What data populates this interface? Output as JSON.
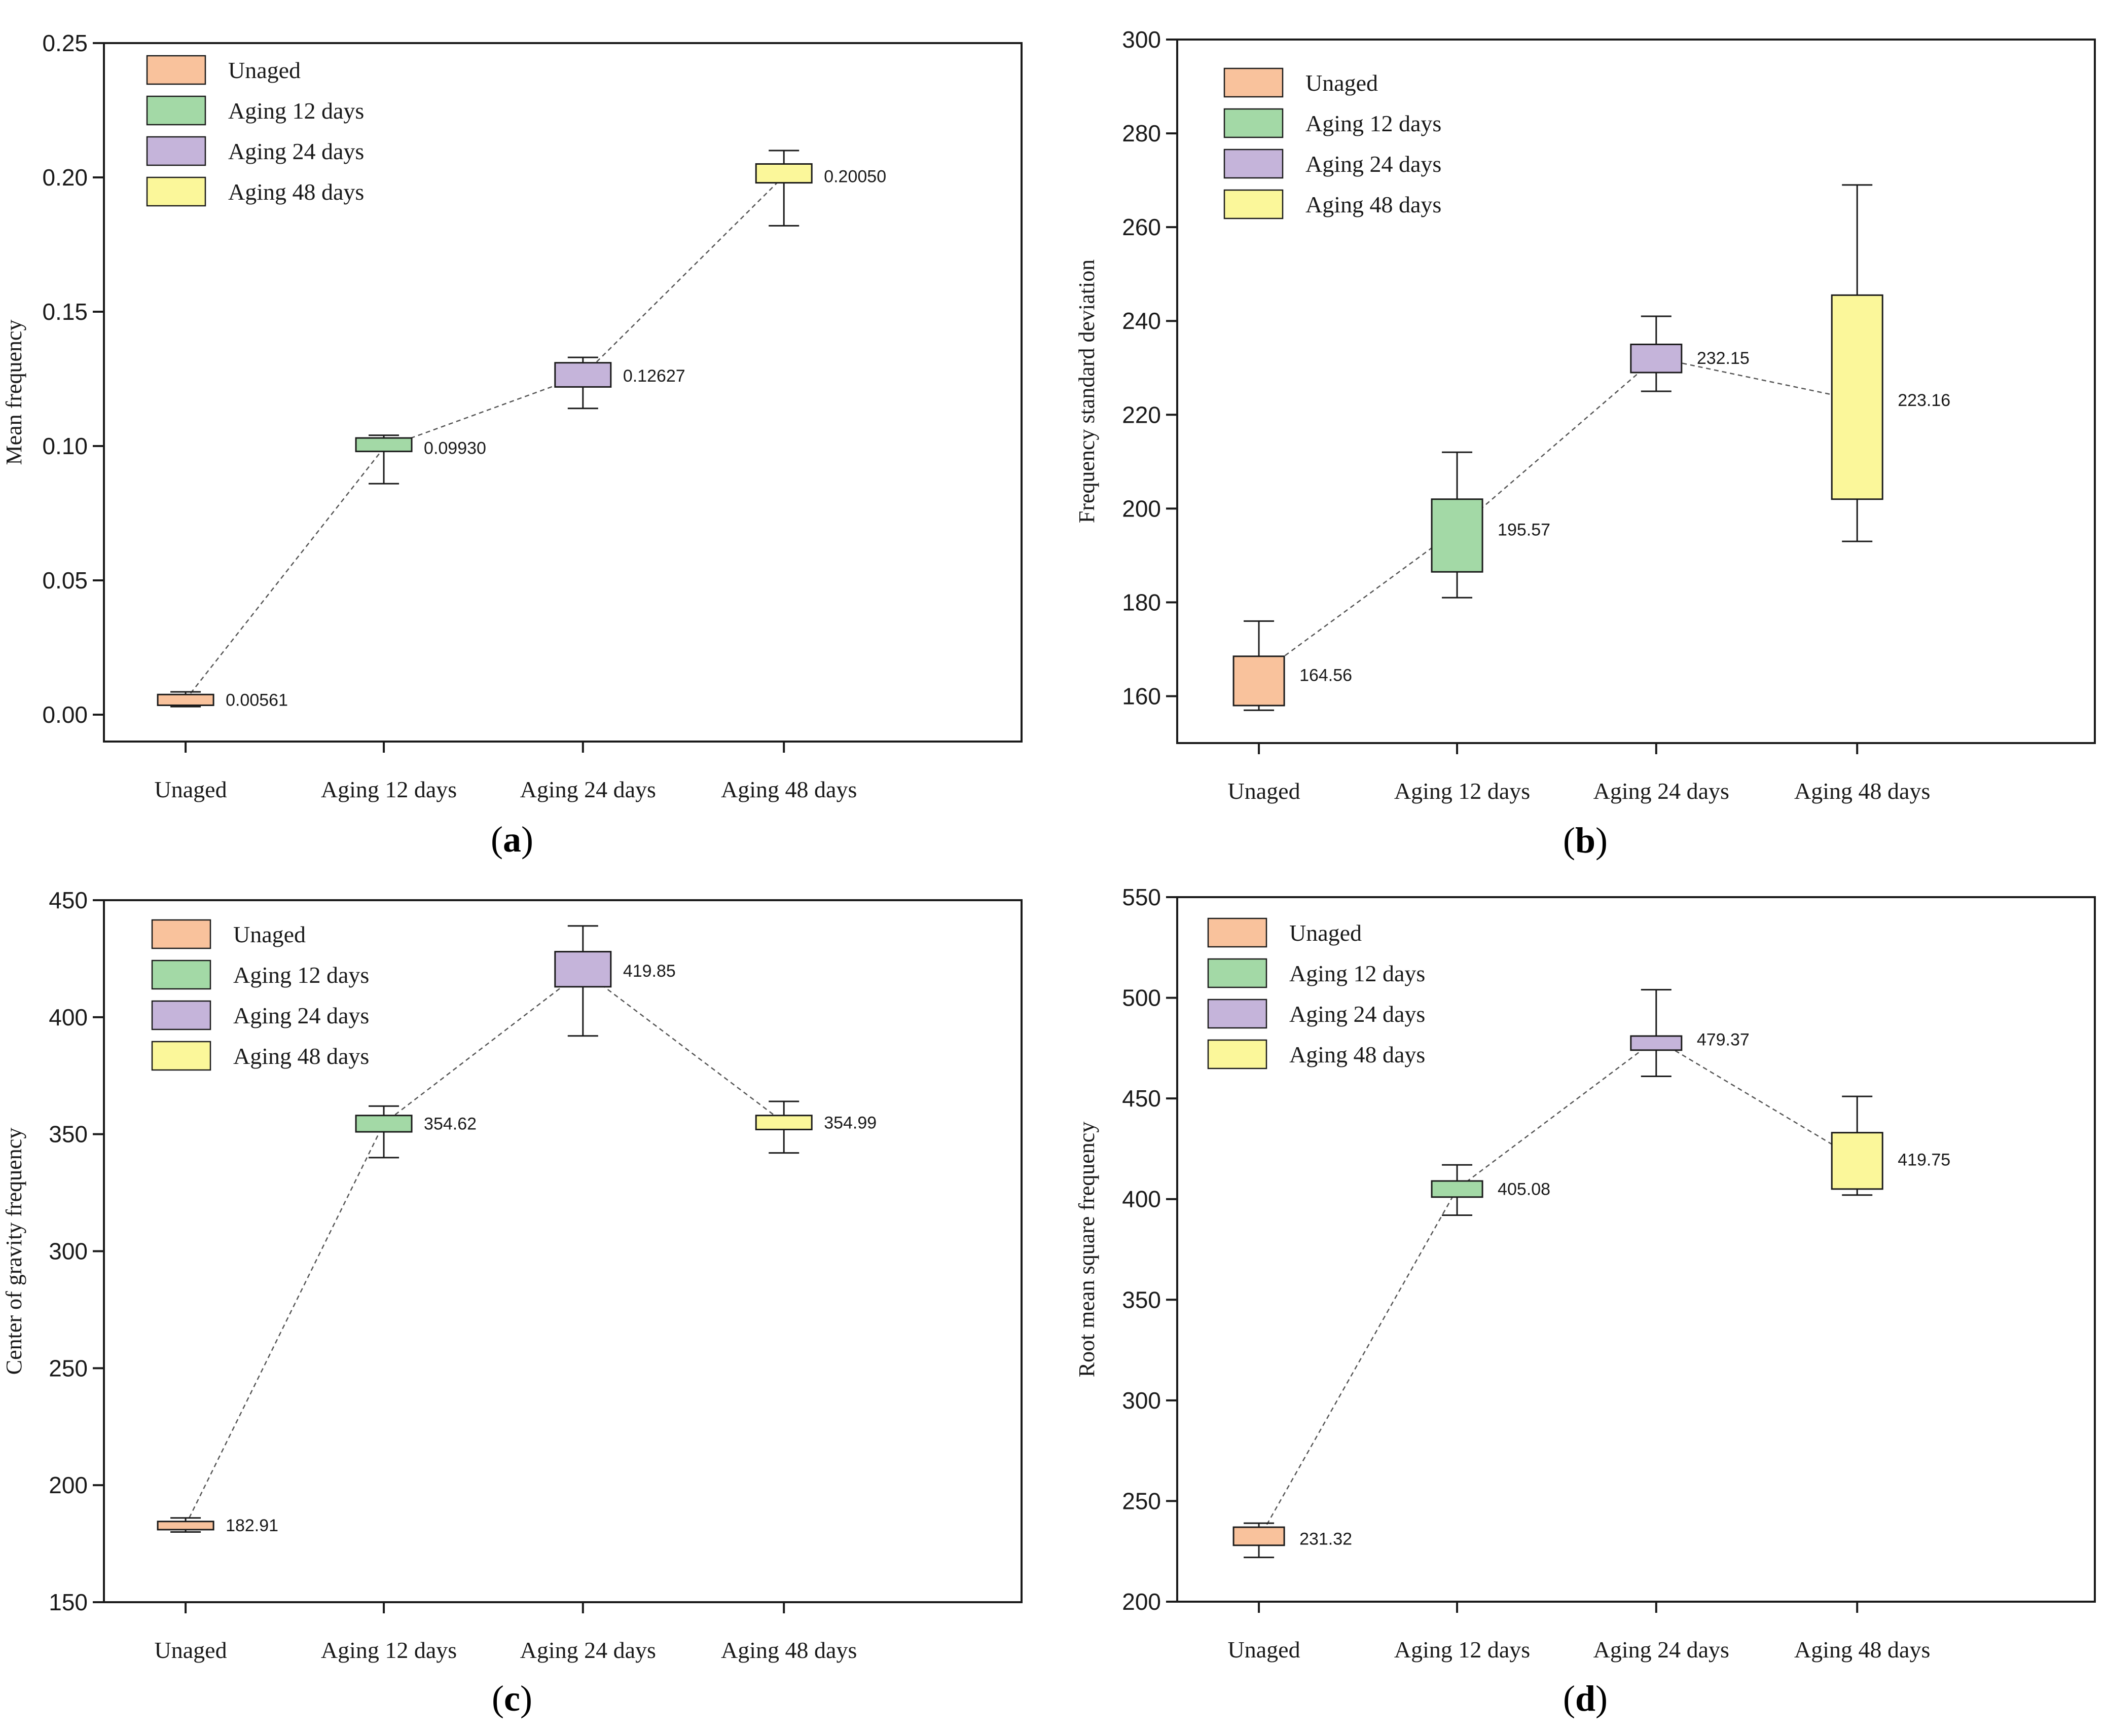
{
  "chart_data": [
    {
      "id": "a",
      "type": "box",
      "caption": "(a)",
      "caption_letter": "a",
      "ylabel": "Mean frequency",
      "ylim": [
        -0.01,
        0.25
      ],
      "yticks": [
        "0.00",
        "0.05",
        "0.10",
        "0.15",
        "0.20",
        "0.25"
      ],
      "ytick_values": [
        0,
        0.05,
        0.1,
        0.15,
        0.2,
        0.25
      ],
      "categories": [
        "Unaged",
        "Aging 12 days",
        "Aging 24 days",
        "Aging 48 days"
      ],
      "legend": [
        "Unaged",
        "Aging 12 days",
        "Aging 24 days",
        "Aging 48 days"
      ],
      "colors": [
        "#f9c29c",
        "#a3d9a6",
        "#c5b4da",
        "#fbf79a"
      ],
      "boxes": [
        {
          "whisker_low": 0.003,
          "q1": 0.0035,
          "q3": 0.0075,
          "whisker_high": 0.0085,
          "mean": 0.00561,
          "label": "0.00561"
        },
        {
          "whisker_low": 0.086,
          "q1": 0.098,
          "q3": 0.103,
          "whisker_high": 0.104,
          "mean": 0.0993,
          "label": "0.09930"
        },
        {
          "whisker_low": 0.114,
          "q1": 0.122,
          "q3": 0.131,
          "whisker_high": 0.133,
          "mean": 0.12627,
          "label": "0.12627"
        },
        {
          "whisker_low": 0.182,
          "q1": 0.198,
          "q3": 0.205,
          "whisker_high": 0.21,
          "mean": 0.2005,
          "label": "0.20050"
        }
      ]
    },
    {
      "id": "b",
      "type": "box",
      "caption": "(b)",
      "caption_letter": "b",
      "ylabel": "Frequency standard deviation",
      "ylim": [
        150,
        300
      ],
      "yticks": [
        "160",
        "180",
        "200",
        "220",
        "240",
        "260",
        "280",
        "300"
      ],
      "ytick_values": [
        160,
        180,
        200,
        220,
        240,
        260,
        280,
        300
      ],
      "categories": [
        "Unaged",
        "Aging 12 days",
        "Aging 24 days",
        "Aging 48 days"
      ],
      "legend": [
        "Unaged",
        "Aging 12 days",
        "Aging 24 days",
        "Aging 48 days"
      ],
      "colors": [
        "#f9c29c",
        "#a3d9a6",
        "#c5b4da",
        "#fbf79a"
      ],
      "boxes": [
        {
          "whisker_low": 157,
          "q1": 158,
          "q3": 168.5,
          "whisker_high": 176,
          "mean": 164.56,
          "label": "164.56"
        },
        {
          "whisker_low": 181,
          "q1": 186.5,
          "q3": 202,
          "whisker_high": 212,
          "mean": 195.57,
          "label": "195.57"
        },
        {
          "whisker_low": 225,
          "q1": 229,
          "q3": 235,
          "whisker_high": 241,
          "mean": 232.15,
          "label": "232.15"
        },
        {
          "whisker_low": 193,
          "q1": 202,
          "q3": 245.5,
          "whisker_high": 269,
          "mean": 223.16,
          "label": "223.16"
        }
      ]
    },
    {
      "id": "c",
      "type": "box",
      "caption": "(c)",
      "caption_letter": "c",
      "ylabel": "Center of gravity frequency",
      "ylim": [
        150,
        450
      ],
      "yticks": [
        "150",
        "200",
        "250",
        "300",
        "350",
        "400",
        "450"
      ],
      "ytick_values": [
        150,
        200,
        250,
        300,
        350,
        400,
        450
      ],
      "categories": [
        "Unaged",
        "Aging 12 days",
        "Aging 24 days",
        "Aging 48 days"
      ],
      "legend": [
        "Unaged",
        "Aging 12 days",
        "Aging 24 days",
        "Aging 48 days"
      ],
      "colors": [
        "#f9c29c",
        "#a3d9a6",
        "#c5b4da",
        "#fbf79a"
      ],
      "boxes": [
        {
          "whisker_low": 180,
          "q1": 181,
          "q3": 184.5,
          "whisker_high": 186,
          "mean": 182.91,
          "label": "182.91"
        },
        {
          "whisker_low": 340,
          "q1": 351,
          "q3": 358,
          "whisker_high": 362,
          "mean": 354.62,
          "label": "354.62"
        },
        {
          "whisker_low": 392,
          "q1": 413,
          "q3": 428,
          "whisker_high": 439,
          "mean": 419.85,
          "label": "419.85"
        },
        {
          "whisker_low": 342,
          "q1": 352,
          "q3": 358,
          "whisker_high": 364,
          "mean": 354.99,
          "label": "354.99"
        }
      ]
    },
    {
      "id": "d",
      "type": "box",
      "caption": "(d)",
      "caption_letter": "d",
      "ylabel": "Root mean square frequency",
      "ylim": [
        200,
        550
      ],
      "yticks": [
        "200",
        "250",
        "300",
        "350",
        "400",
        "450",
        "500",
        "550"
      ],
      "ytick_values": [
        200,
        250,
        300,
        350,
        400,
        450,
        500,
        550
      ],
      "categories": [
        "Unaged",
        "Aging 12 days",
        "Aging 24 days",
        "Aging 48 days"
      ],
      "legend": [
        "Unaged",
        "Aging 12 days",
        "Aging 24 days",
        "Aging 48 days"
      ],
      "colors": [
        "#f9c29c",
        "#a3d9a6",
        "#c5b4da",
        "#fbf79a"
      ],
      "boxes": [
        {
          "whisker_low": 222,
          "q1": 228,
          "q3": 237,
          "whisker_high": 239,
          "mean": 231.32,
          "label": "231.32"
        },
        {
          "whisker_low": 392,
          "q1": 401,
          "q3": 409,
          "whisker_high": 417,
          "mean": 405.08,
          "label": "405.08"
        },
        {
          "whisker_low": 461,
          "q1": 474,
          "q3": 481,
          "whisker_high": 504,
          "mean": 479.37,
          "label": "479.37"
        },
        {
          "whisker_low": 402,
          "q1": 405,
          "q3": 433,
          "whisker_high": 451,
          "mean": 419.75,
          "label": "419.75"
        }
      ]
    }
  ]
}
